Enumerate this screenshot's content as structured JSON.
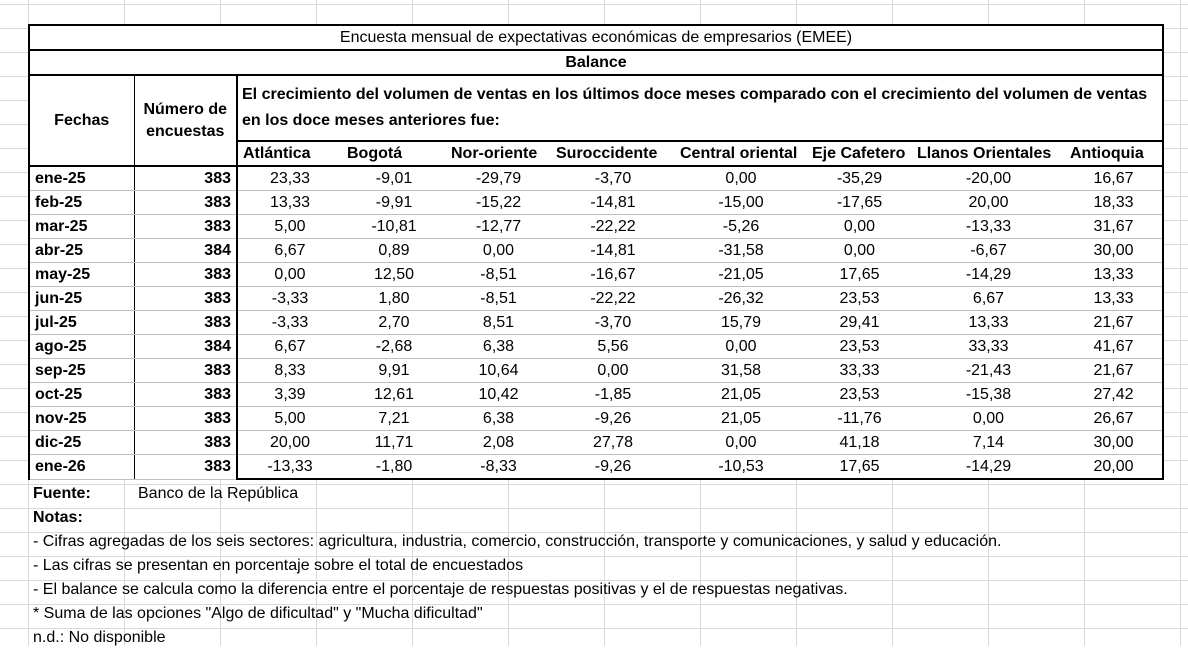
{
  "title": "Encuesta mensual de expectativas económicas de empresarios (EMEE)",
  "subtitle": "Balance",
  "headers": {
    "fechas": "Fechas",
    "numero": "Número de encuestas",
    "description": "El crecimiento del volumen de ventas en los últimos doce meses comparado con el crecimiento del volumen de ventas en los doce meses anteriores fue:",
    "regions": [
      "Atlántica",
      "Bogotá",
      "Nor-oriente",
      "Suroccidente",
      "Central oriental",
      "Eje Cafetero",
      "Llanos Orientales",
      "Antioquia"
    ]
  },
  "rows": [
    {
      "fecha": "ene-25",
      "n": "383",
      "values": [
        "23,33",
        "-9,01",
        "-29,79",
        "-3,70",
        "0,00",
        "-35,29",
        "-20,00",
        "16,67"
      ]
    },
    {
      "fecha": "feb-25",
      "n": "383",
      "values": [
        "13,33",
        "-9,91",
        "-15,22",
        "-14,81",
        "-15,00",
        "-17,65",
        "20,00",
        "18,33"
      ]
    },
    {
      "fecha": "mar-25",
      "n": "383",
      "values": [
        "5,00",
        "-10,81",
        "-12,77",
        "-22,22",
        "-5,26",
        "0,00",
        "-13,33",
        "31,67"
      ]
    },
    {
      "fecha": "abr-25",
      "n": "384",
      "values": [
        "6,67",
        "0,89",
        "0,00",
        "-14,81",
        "-31,58",
        "0,00",
        "-6,67",
        "30,00"
      ]
    },
    {
      "fecha": "may-25",
      "n": "383",
      "values": [
        "0,00",
        "12,50",
        "-8,51",
        "-16,67",
        "-21,05",
        "17,65",
        "-14,29",
        "13,33"
      ]
    },
    {
      "fecha": "jun-25",
      "n": "383",
      "values": [
        "-3,33",
        "1,80",
        "-8,51",
        "-22,22",
        "-26,32",
        "23,53",
        "6,67",
        "13,33"
      ]
    },
    {
      "fecha": "jul-25",
      "n": "383",
      "values": [
        "-3,33",
        "2,70",
        "8,51",
        "-3,70",
        "15,79",
        "29,41",
        "13,33",
        "21,67"
      ]
    },
    {
      "fecha": "ago-25",
      "n": "384",
      "values": [
        "6,67",
        "-2,68",
        "6,38",
        "5,56",
        "0,00",
        "23,53",
        "33,33",
        "41,67"
      ]
    },
    {
      "fecha": "sep-25",
      "n": "383",
      "values": [
        "8,33",
        "9,91",
        "10,64",
        "0,00",
        "31,58",
        "33,33",
        "-21,43",
        "21,67"
      ]
    },
    {
      "fecha": "oct-25",
      "n": "383",
      "values": [
        "3,39",
        "12,61",
        "10,42",
        "-1,85",
        "21,05",
        "23,53",
        "-15,38",
        "27,42"
      ]
    },
    {
      "fecha": "nov-25",
      "n": "383",
      "values": [
        "5,00",
        "7,21",
        "6,38",
        "-9,26",
        "21,05",
        "-11,76",
        "0,00",
        "26,67"
      ]
    },
    {
      "fecha": "dic-25",
      "n": "383",
      "values": [
        "20,00",
        "11,71",
        "2,08",
        "27,78",
        "0,00",
        "41,18",
        "7,14",
        "30,00"
      ]
    },
    {
      "fecha": "ene-26",
      "n": "383",
      "values": [
        "-13,33",
        "-1,80",
        "-8,33",
        "-9,26",
        "-10,53",
        "17,65",
        "-14,29",
        "20,00"
      ]
    }
  ],
  "fuente_label": "Fuente:",
  "fuente_value": "Banco de la República",
  "notas_label": "Notas:",
  "notes": [
    "- Cifras agregadas de los seis sectores: agricultura, industria, comercio, construcción, transporte y comunicaciones, y salud y educación.",
    "- Las cifras se presentan en porcentaje sobre el total de encuestados",
    "- El balance se calcula como la diferencia entre el porcentaje de respuestas positivas y el de respuestas negativas.",
    "* Suma de las opciones \"Algo de dificultad\" y \"Mucha dificultad\"",
    "n.d.: No disponible"
  ]
}
